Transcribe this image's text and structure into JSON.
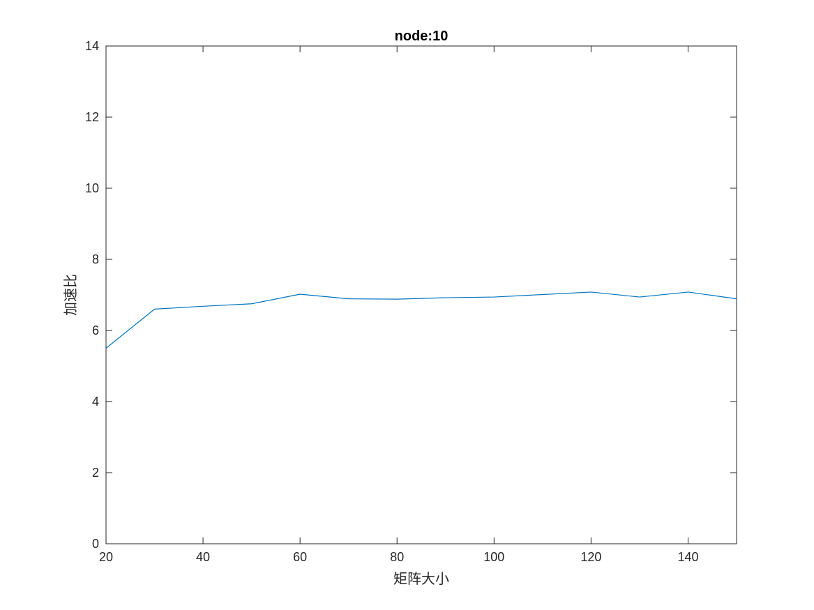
{
  "chart_data": {
    "type": "line",
    "title": "node:10",
    "xlabel": "矩阵大小",
    "ylabel": "加速比",
    "xlim": [
      20,
      150
    ],
    "ylim": [
      0,
      14
    ],
    "x_ticks": [
      20,
      40,
      60,
      80,
      100,
      120,
      140
    ],
    "y_ticks": [
      0,
      2,
      4,
      6,
      8,
      10,
      12,
      14
    ],
    "grid": false,
    "box": true,
    "series": [
      {
        "color": "#0072BD",
        "x": [
          20,
          30,
          40,
          50,
          60,
          70,
          80,
          90,
          100,
          110,
          120,
          130,
          140,
          150
        ],
        "y": [
          5.5,
          6.6,
          6.68,
          6.75,
          7.02,
          6.89,
          6.88,
          6.92,
          6.94,
          7.01,
          7.08,
          6.94,
          7.08,
          6.89
        ]
      }
    ]
  }
}
